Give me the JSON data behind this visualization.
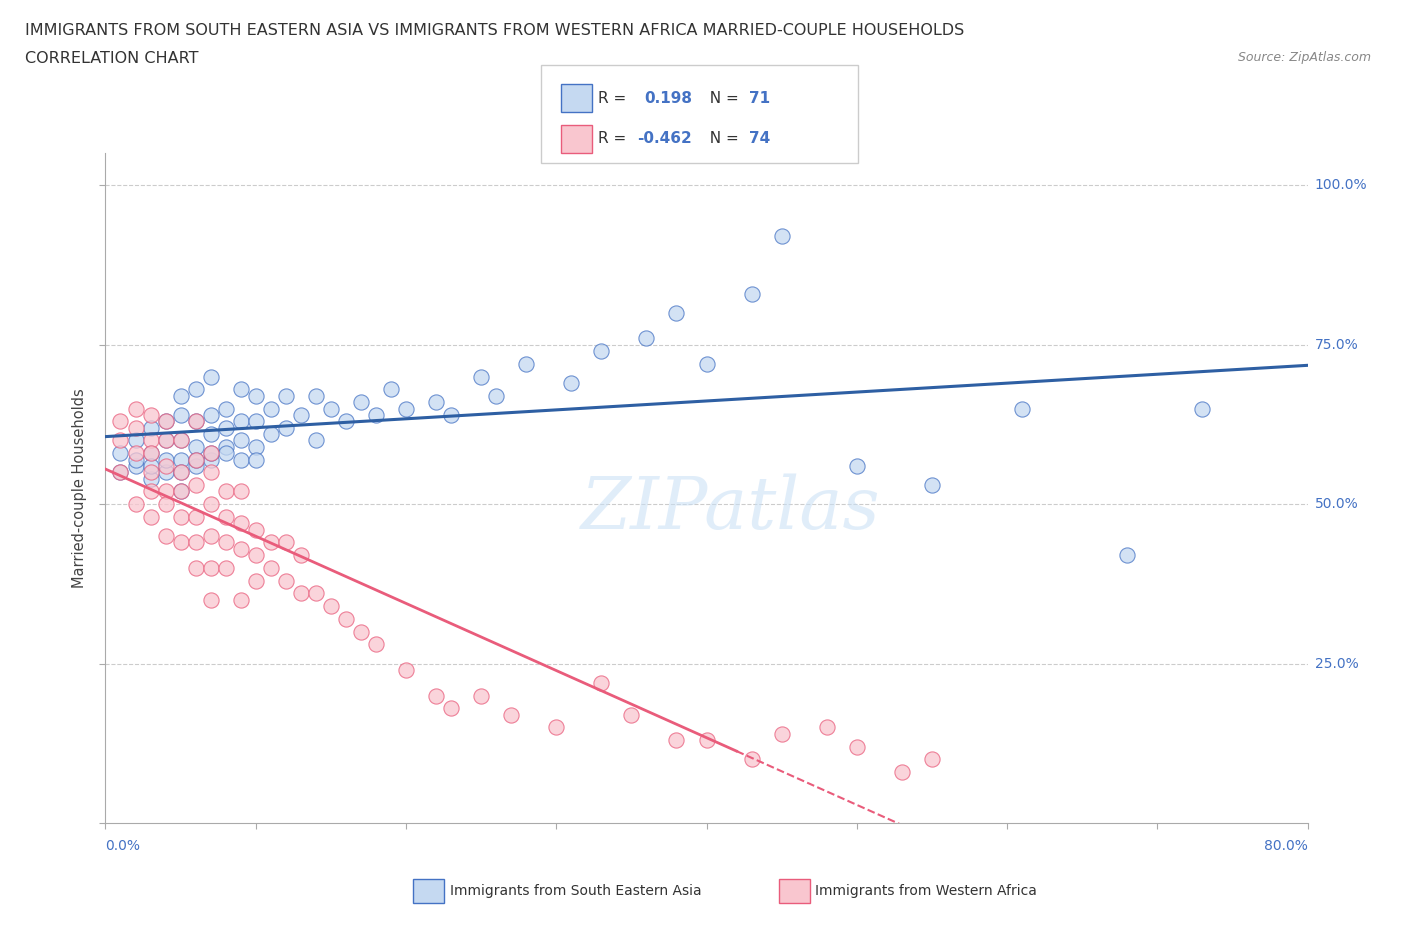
{
  "title_line1": "IMMIGRANTS FROM SOUTH EASTERN ASIA VS IMMIGRANTS FROM WESTERN AFRICA MARRIED-COUPLE HOUSEHOLDS",
  "title_line2": "CORRELATION CHART",
  "source_text": "Source: ZipAtlas.com",
  "ylabel": "Married-couple Households",
  "r_blue": 0.198,
  "n_blue": 71,
  "r_pink": -0.462,
  "n_pink": 74,
  "color_blue_fill": "#c5d9f1",
  "color_blue_edge": "#4472C4",
  "color_pink_fill": "#f9c6cf",
  "color_pink_edge": "#E95C7B",
  "color_pink_line": "#E95C7B",
  "color_blue_line": "#2E5FA3",
  "watermark": "ZIPatlas",
  "xlim": [
    0.0,
    0.8
  ],
  "ylim": [
    0.0,
    1.05
  ],
  "grid_color": "#cccccc",
  "blue_x": [
    0.01,
    0.01,
    0.02,
    0.02,
    0.02,
    0.03,
    0.03,
    0.03,
    0.03,
    0.04,
    0.04,
    0.04,
    0.04,
    0.05,
    0.05,
    0.05,
    0.05,
    0.05,
    0.05,
    0.06,
    0.06,
    0.06,
    0.06,
    0.06,
    0.07,
    0.07,
    0.07,
    0.07,
    0.07,
    0.08,
    0.08,
    0.08,
    0.08,
    0.09,
    0.09,
    0.09,
    0.09,
    0.1,
    0.1,
    0.1,
    0.1,
    0.11,
    0.11,
    0.12,
    0.12,
    0.13,
    0.14,
    0.14,
    0.15,
    0.16,
    0.17,
    0.18,
    0.19,
    0.2,
    0.22,
    0.23,
    0.25,
    0.26,
    0.28,
    0.31,
    0.33,
    0.36,
    0.38,
    0.4,
    0.43,
    0.45,
    0.5,
    0.55,
    0.61,
    0.68,
    0.73
  ],
  "blue_y": [
    0.58,
    0.55,
    0.56,
    0.6,
    0.57,
    0.54,
    0.58,
    0.62,
    0.56,
    0.55,
    0.6,
    0.63,
    0.57,
    0.52,
    0.57,
    0.6,
    0.64,
    0.55,
    0.67,
    0.56,
    0.59,
    0.63,
    0.57,
    0.68,
    0.57,
    0.61,
    0.64,
    0.58,
    0.7,
    0.59,
    0.62,
    0.65,
    0.58,
    0.6,
    0.63,
    0.57,
    0.68,
    0.59,
    0.63,
    0.57,
    0.67,
    0.61,
    0.65,
    0.62,
    0.67,
    0.64,
    0.6,
    0.67,
    0.65,
    0.63,
    0.66,
    0.64,
    0.68,
    0.65,
    0.66,
    0.64,
    0.7,
    0.67,
    0.72,
    0.69,
    0.74,
    0.76,
    0.8,
    0.72,
    0.83,
    0.92,
    0.56,
    0.53,
    0.65,
    0.42,
    0.65
  ],
  "pink_x": [
    0.01,
    0.01,
    0.01,
    0.02,
    0.02,
    0.02,
    0.02,
    0.03,
    0.03,
    0.03,
    0.03,
    0.03,
    0.03,
    0.04,
    0.04,
    0.04,
    0.04,
    0.04,
    0.04,
    0.05,
    0.05,
    0.05,
    0.05,
    0.05,
    0.06,
    0.06,
    0.06,
    0.06,
    0.06,
    0.06,
    0.07,
    0.07,
    0.07,
    0.07,
    0.07,
    0.07,
    0.08,
    0.08,
    0.08,
    0.08,
    0.09,
    0.09,
    0.09,
    0.09,
    0.1,
    0.1,
    0.1,
    0.11,
    0.11,
    0.12,
    0.12,
    0.13,
    0.13,
    0.14,
    0.15,
    0.16,
    0.17,
    0.18,
    0.2,
    0.22,
    0.23,
    0.25,
    0.27,
    0.3,
    0.33,
    0.35,
    0.38,
    0.4,
    0.43,
    0.45,
    0.48,
    0.5,
    0.53,
    0.55
  ],
  "pink_y": [
    0.6,
    0.63,
    0.55,
    0.58,
    0.62,
    0.65,
    0.5,
    0.55,
    0.6,
    0.52,
    0.64,
    0.48,
    0.58,
    0.52,
    0.56,
    0.6,
    0.45,
    0.63,
    0.5,
    0.48,
    0.55,
    0.52,
    0.6,
    0.44,
    0.48,
    0.53,
    0.57,
    0.44,
    0.4,
    0.63,
    0.45,
    0.5,
    0.55,
    0.4,
    0.58,
    0.35,
    0.44,
    0.48,
    0.52,
    0.4,
    0.43,
    0.47,
    0.35,
    0.52,
    0.42,
    0.46,
    0.38,
    0.4,
    0.44,
    0.38,
    0.44,
    0.36,
    0.42,
    0.36,
    0.34,
    0.32,
    0.3,
    0.28,
    0.24,
    0.2,
    0.18,
    0.2,
    0.17,
    0.15,
    0.22,
    0.17,
    0.13,
    0.13,
    0.1,
    0.14,
    0.15,
    0.12,
    0.08,
    0.1
  ]
}
